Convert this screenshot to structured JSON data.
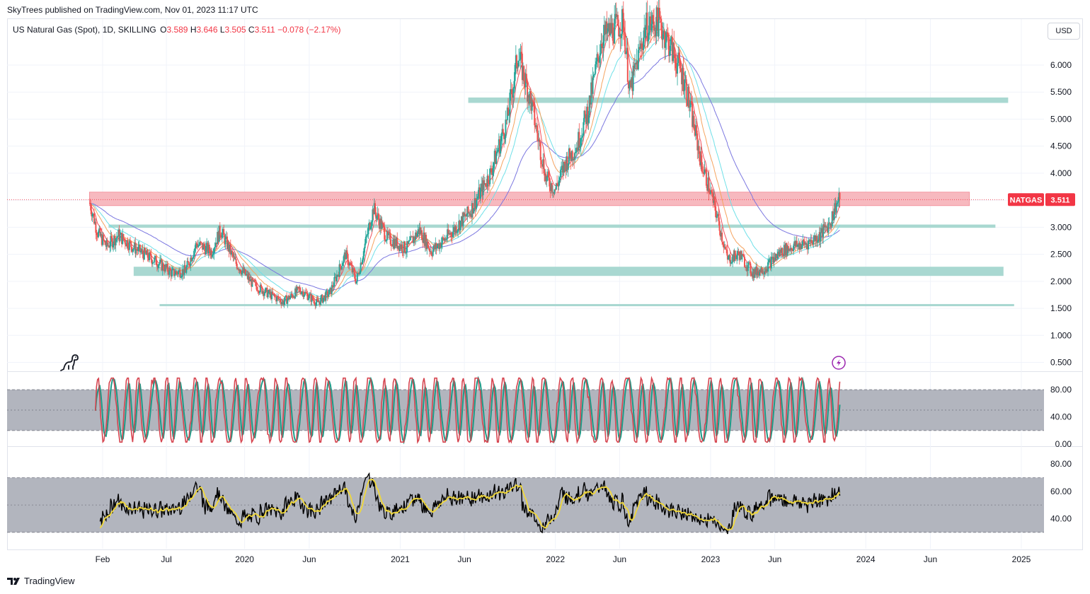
{
  "header": {
    "publisher": "SkyTrees published on TradingView.com, Nov 01, 2023 11:17 UTC"
  },
  "legend": {
    "symbol": "US Natural Gas (Spot), 1D, SKILLING",
    "open_label": "O",
    "open_value": "3.589",
    "high_label": "H",
    "high_value": "3.646",
    "low_label": "L",
    "low_value": "3.505",
    "close_label": "C",
    "close_value": "3.511",
    "change": "−0.078 (−2.17%)"
  },
  "currency_button": "USD",
  "price_tag": {
    "ticker": "NATGAS",
    "value": "3.511"
  },
  "footer": {
    "brand": "TradingView"
  },
  "colors": {
    "up": "#26a69a",
    "down": "#ef5350",
    "resistance_zone": "#f7b9bf",
    "support_zone": "#a9d8d1",
    "ema_red": "#f04f5c",
    "ema_orange": "#f5a35f",
    "ema_cyan": "#6fe0e8",
    "ema_blue": "#7b77e0",
    "stoch_k": "#d64550",
    "stoch_d": "#1d9b87",
    "rsi_line": "#000000",
    "rsi_ma": "#f0d83a",
    "indicator_band": "#b2b5be"
  },
  "chart_data": [
    {
      "type": "candlestick",
      "title": "US Natural Gas (Spot), 1D, SKILLING",
      "x_tick_labels": [
        "Feb",
        "Jul",
        "2020",
        "Jun",
        "2021",
        "Jun",
        "2022",
        "Jun",
        "2023",
        "Jun",
        "2024",
        "Jun",
        "2025"
      ],
      "x_tick_dates": [
        "2019-02-01",
        "2019-07-01",
        "2020-01-01",
        "2020-06-01",
        "2021-01-01",
        "2021-06-01",
        "2022-01-01",
        "2022-06-01",
        "2023-01-01",
        "2023-06-01",
        "2024-01-01",
        "2024-06-01",
        "2025-01-01"
      ],
      "y_ticks": [
        "0.500",
        "1.000",
        "1.500",
        "2.000",
        "2.500",
        "3.000",
        "3.500",
        "4.000",
        "4.500",
        "5.000",
        "5.500",
        "6.000"
      ],
      "ylim": [
        0.35,
        6.85
      ],
      "last_price": 3.511,
      "price_path": [
        {
          "date": "2019-01-02",
          "price": 3.45
        },
        {
          "date": "2019-01-20",
          "price": 2.9
        },
        {
          "date": "2019-02-10",
          "price": 2.65
        },
        {
          "date": "2019-03-10",
          "price": 2.85
        },
        {
          "date": "2019-04-20",
          "price": 2.6
        },
        {
          "date": "2019-06-10",
          "price": 2.35
        },
        {
          "date": "2019-07-15",
          "price": 2.15
        },
        {
          "date": "2019-08-15",
          "price": 2.2
        },
        {
          "date": "2019-09-10",
          "price": 2.7
        },
        {
          "date": "2019-10-15",
          "price": 2.55
        },
        {
          "date": "2019-11-05",
          "price": 2.95
        },
        {
          "date": "2019-12-10",
          "price": 2.35
        },
        {
          "date": "2020-01-20",
          "price": 1.95
        },
        {
          "date": "2020-03-01",
          "price": 1.75
        },
        {
          "date": "2020-04-01",
          "price": 1.62
        },
        {
          "date": "2020-05-10",
          "price": 1.85
        },
        {
          "date": "2020-06-20",
          "price": 1.6
        },
        {
          "date": "2020-07-20",
          "price": 1.8
        },
        {
          "date": "2020-08-25",
          "price": 2.5
        },
        {
          "date": "2020-09-20",
          "price": 2.0
        },
        {
          "date": "2020-10-30",
          "price": 3.35
        },
        {
          "date": "2020-12-01",
          "price": 2.8
        },
        {
          "date": "2021-01-15",
          "price": 2.6
        },
        {
          "date": "2021-02-15",
          "price": 2.95
        },
        {
          "date": "2021-03-15",
          "price": 2.55
        },
        {
          "date": "2021-05-01",
          "price": 2.9
        },
        {
          "date": "2021-06-15",
          "price": 3.3
        },
        {
          "date": "2021-08-01",
          "price": 4.0
        },
        {
          "date": "2021-09-10",
          "price": 5.0
        },
        {
          "date": "2021-10-05",
          "price": 6.2
        },
        {
          "date": "2021-11-05",
          "price": 5.3
        },
        {
          "date": "2021-12-10",
          "price": 3.9
        },
        {
          "date": "2022-01-01",
          "price": 3.7
        },
        {
          "date": "2022-01-25",
          "price": 4.2
        },
        {
          "date": "2022-02-20",
          "price": 4.5
        },
        {
          "date": "2022-03-20",
          "price": 5.2
        },
        {
          "date": "2022-04-20",
          "price": 6.5
        },
        {
          "date": "2022-06-10",
          "price": 6.8
        },
        {
          "date": "2022-06-25",
          "price": 5.5
        },
        {
          "date": "2022-08-01",
          "price": 6.7
        },
        {
          "date": "2022-09-01",
          "price": 6.8
        },
        {
          "date": "2022-10-01",
          "price": 6.3
        },
        {
          "date": "2022-11-01",
          "price": 5.7
        },
        {
          "date": "2022-12-10",
          "price": 4.2
        },
        {
          "date": "2023-01-10",
          "price": 3.4
        },
        {
          "date": "2023-02-10",
          "price": 2.4
        },
        {
          "date": "2023-03-10",
          "price": 2.5
        },
        {
          "date": "2023-04-10",
          "price": 2.15
        },
        {
          "date": "2023-05-10",
          "price": 2.25
        },
        {
          "date": "2023-06-15",
          "price": 2.55
        },
        {
          "date": "2023-07-15",
          "price": 2.65
        },
        {
          "date": "2023-08-15",
          "price": 2.7
        },
        {
          "date": "2023-09-15",
          "price": 2.85
        },
        {
          "date": "2023-10-10",
          "price": 3.1
        },
        {
          "date": "2023-10-22",
          "price": 3.4
        },
        {
          "date": "2023-11-01",
          "price": 3.511
        }
      ],
      "zones": [
        {
          "name": "resistance",
          "from_date": "2019-01-01",
          "to_date": "2024-09-01",
          "low": 3.4,
          "high": 3.65
        },
        {
          "name": "support-5.35",
          "from_date": "2021-06-10",
          "to_date": "2024-12-01",
          "low": 5.3,
          "high": 5.4
        },
        {
          "name": "support-3.0",
          "from_date": "2019-02-15",
          "to_date": "2024-11-01",
          "low": 2.99,
          "high": 3.05
        },
        {
          "name": "support-2.2",
          "from_date": "2019-04-15",
          "to_date": "2024-11-20",
          "low": 2.1,
          "high": 2.27
        },
        {
          "name": "support-1.55",
          "from_date": "2019-06-15",
          "to_date": "2024-12-15",
          "low": 1.54,
          "high": 1.58
        }
      ]
    },
    {
      "type": "line",
      "y_ticks": [
        "0.00",
        "40.00",
        "80.00"
      ],
      "ylim": [
        -2,
        105
      ],
      "band": [
        20,
        80
      ],
      "cycles": 55
    },
    {
      "type": "line",
      "y_ticks": [
        "40.00",
        "60.00",
        "80.00"
      ],
      "ylim": [
        18,
        92
      ],
      "band": [
        30,
        70
      ]
    }
  ]
}
